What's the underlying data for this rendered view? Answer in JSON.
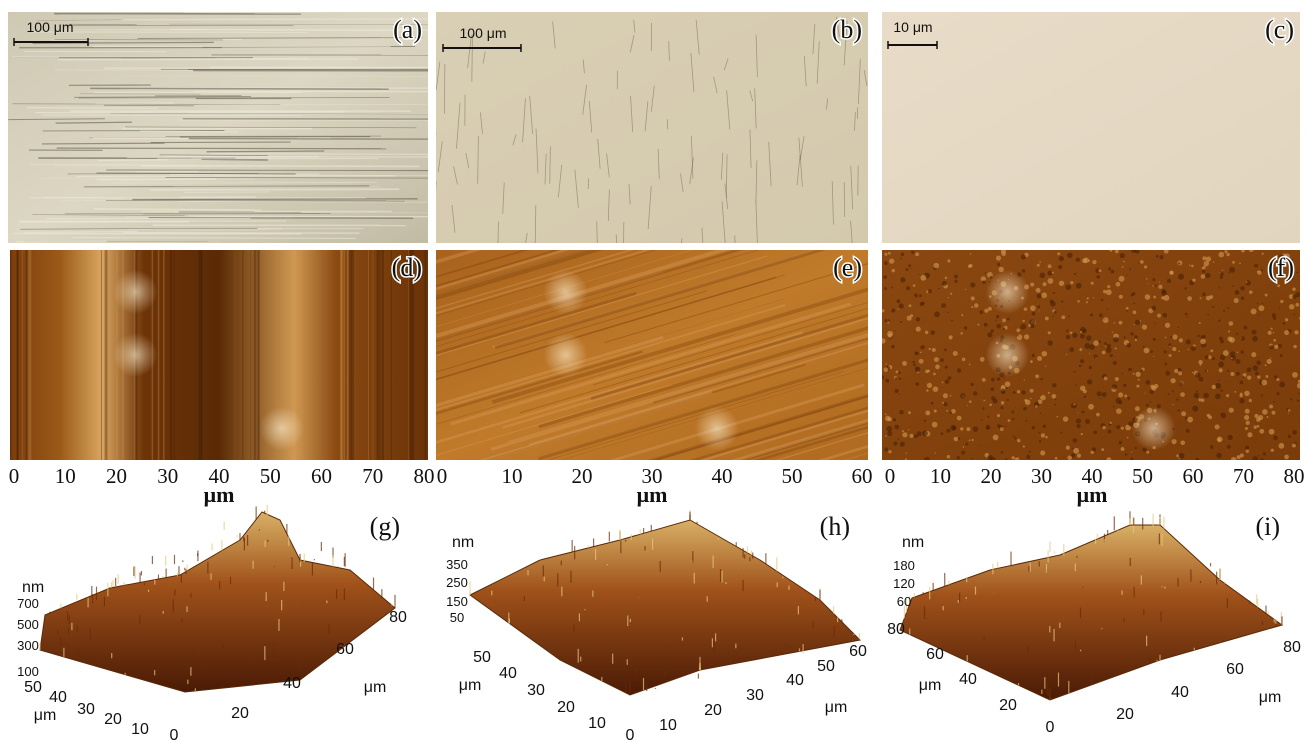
{
  "panels": [
    {
      "label": "(a)",
      "scale_bar": "100 μm"
    },
    {
      "label": "(b)",
      "scale_bar": "100 μm"
    },
    {
      "label": "(c)",
      "scale_bar": "10 μm"
    },
    {
      "label": "(d)"
    },
    {
      "label": "(e)"
    },
    {
      "label": "(f)"
    }
  ],
  "afm_axes": [
    {
      "ticks": [
        0,
        10,
        20,
        30,
        40,
        50,
        60,
        70,
        80
      ],
      "label": "μm"
    },
    {
      "ticks": [
        0,
        10,
        20,
        30,
        40,
        50,
        60
      ],
      "label": "μm"
    },
    {
      "ticks": [
        0,
        10,
        20,
        30,
        40,
        50,
        60,
        70,
        80
      ],
      "label": "μm"
    }
  ],
  "surfaces": [
    {
      "label": "(g)",
      "z_unit": "nm",
      "z_ticks": [
        700,
        500,
        300,
        100
      ],
      "y_ticks": [
        50,
        40,
        30,
        20,
        10,
        0
      ],
      "y_unit": "μm",
      "x_ticks": [
        20,
        40,
        60,
        80
      ],
      "x_unit": "μm"
    },
    {
      "label": "(h)",
      "z_unit": "nm",
      "z_ticks": [
        350,
        250,
        150,
        50
      ],
      "y_ticks": [
        50,
        40,
        30,
        20,
        10,
        0
      ],
      "y_unit": "μm",
      "x_ticks": [
        10,
        20,
        30,
        40,
        50,
        60
      ],
      "x_unit": "μm"
    },
    {
      "label": "(i)",
      "z_unit": "nm",
      "z_ticks": [
        180,
        120,
        60
      ],
      "y_ticks": [
        80,
        60,
        40,
        20,
        0
      ],
      "y_unit": "μm",
      "x_ticks": [
        20,
        40,
        60,
        80
      ],
      "x_unit": "μm"
    }
  ]
}
